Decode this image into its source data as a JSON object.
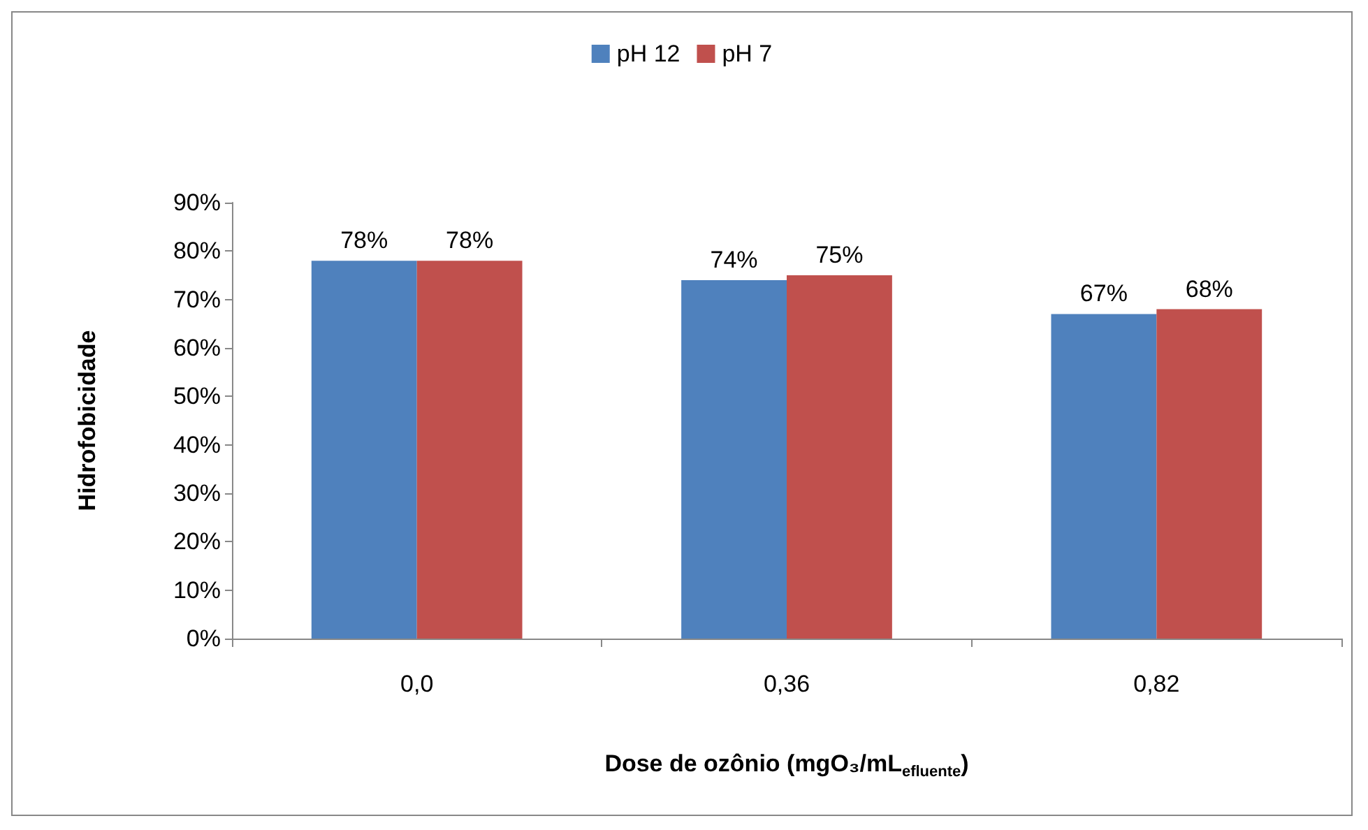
{
  "chart_data": {
    "type": "bar",
    "xlabel": "Dose de ozônio (mgO₃/mL$_{efluente}$)",
    "ylabel": "Hidrofobicidade",
    "categories": [
      "0,0",
      "0,36",
      "0,82"
    ],
    "series": [
      {
        "name": "pH 12",
        "color": "#4f81bd",
        "values": [
          78,
          74,
          67
        ],
        "value_labels": [
          "78%",
          "74%",
          "67%"
        ]
      },
      {
        "name": "pH 7",
        "color": "#c0504d",
        "values": [
          78,
          75,
          68
        ],
        "value_labels": [
          "78%",
          "75%",
          "68%"
        ]
      }
    ],
    "ylim": [
      0,
      90
    ],
    "yticks": [
      {
        "value": 0,
        "label": "0%"
      },
      {
        "value": 10,
        "label": "10%"
      },
      {
        "value": 20,
        "label": "20%"
      },
      {
        "value": 30,
        "label": "30%"
      },
      {
        "value": 40,
        "label": "40%"
      },
      {
        "value": 50,
        "label": "50%"
      },
      {
        "value": 60,
        "label": "60%"
      },
      {
        "value": 70,
        "label": "70%"
      },
      {
        "value": 80,
        "label": "80%"
      },
      {
        "value": 90,
        "label": "90%"
      }
    ],
    "grid": false,
    "legend": "top"
  }
}
